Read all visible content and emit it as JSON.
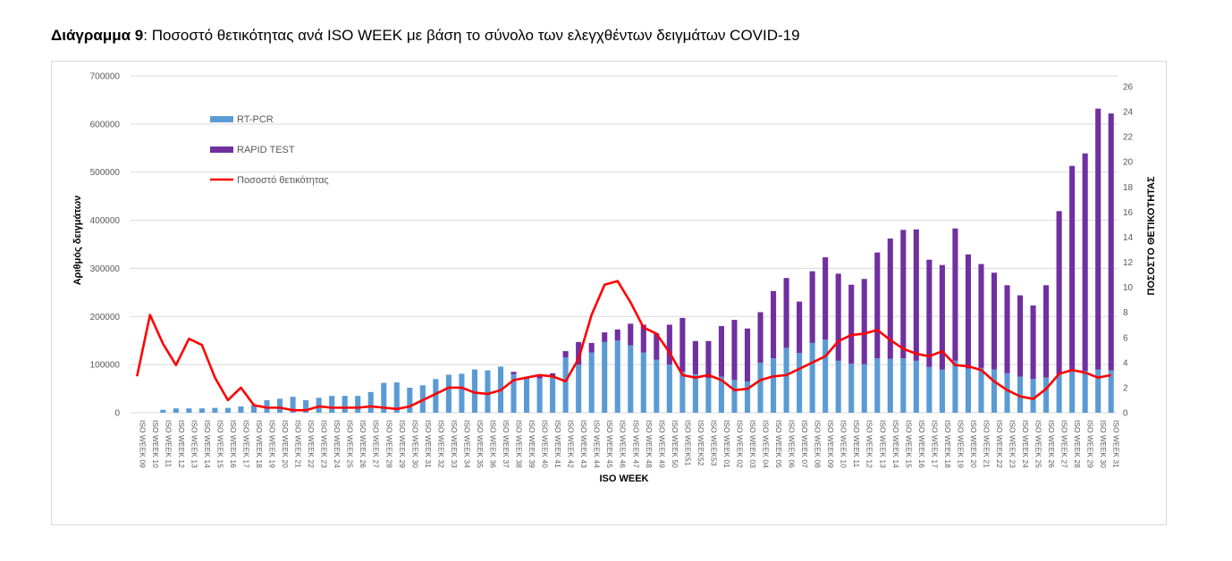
{
  "caption": {
    "label": "Διάγραμμα 9",
    "text": ": Ποσοστό θετικότητας ανά ISO WEEK με βάση το σύνολο των ελεγχθέντων δειγμάτων COVID-19"
  },
  "chart_data": {
    "type": "bar",
    "stacked": true,
    "title": "Διάγραμμα 9: Ποσοστό θετικότητας ανά ISO WEEK με βάση το σύνολο των ελεγχθέντων δειγμάτων COVID-19",
    "xlabel": "ISO WEEK",
    "ylabel": "Αριθμός δειγμάτων",
    "y2label": "ΠΟΣΟΣΤΟ ΘΕΤΙΚΟΤΗΤΑΣ",
    "ylim": [
      0,
      700000
    ],
    "y2lim": [
      0,
      26
    ],
    "yticks": [
      "0",
      "100000",
      "200000",
      "300000",
      "400000",
      "500000",
      "600000",
      "700000"
    ],
    "y2ticks": [
      "0",
      "2",
      "4",
      "6",
      "8",
      "10",
      "12",
      "14",
      "16",
      "18",
      "20",
      "22",
      "24",
      "26"
    ],
    "grid": true,
    "legend_position": "top-left",
    "categories": [
      "ISO WEEK 09",
      "ISO WEEK 10",
      "ISO WEEK 11",
      "ISO WEEK 12",
      "ISO WEEK 13",
      "ISO WEEK 14",
      "ISO WEEK 15",
      "ISO WEEK 16",
      "ISO WEEK 17",
      "ISO WEEK 18",
      "ISO WEEK 19",
      "ISO WEEK 20",
      "ISO WEEK 21",
      "ISO WEEK 22",
      "ISO WEEK 23",
      "ISO WEEK 24",
      "ISO WEEK 25",
      "ISO WEEK 26",
      "ISO WEEK 27",
      "ISO WEEK 28",
      "ISO WEEK 29",
      "ISO WEEK 30",
      "ISO WEEK 31",
      "ISO WEEK 32",
      "ISO WEEK 33",
      "ISO WEEK 34",
      "ISO WEEK 35",
      "ISO WEEK 36",
      "ISO WEEK 37",
      "ISO WEEK 38",
      "ISO WEEK 39",
      "ISO WEEK 40",
      "ISO WEEK 41",
      "ISO WEEK 42",
      "ISO WEEK 43",
      "ISO WEEK 44",
      "ISO WEEK 45",
      "ISO WEEK 46",
      "ISO WEEK 47",
      "ISO WEEK 48",
      "ISO WEEK 49",
      "ISO WEEK 50",
      "ISO WEEK51",
      "ISO WEEK52",
      "ISO WEEK53",
      "ISO WEEK 01",
      "ISO WEEK 02",
      "ISO WEEK 03",
      "ISO WEEK 04",
      "ISO WEEK 05",
      "ISO WEEK 06",
      "ISO WEEK 07",
      "ISO WEEK 08",
      "ISO WEEK 09",
      "ISO WEEK 10",
      "ISO WEEK 11",
      "ISO WEEK 12",
      "ISO WEEK 13",
      "ISO WEEK 14",
      "ISO WEEK 15",
      "ISO WEEK 16",
      "ISO WEEK 17",
      "ISO WEEK 18",
      "ISO WEEK 19",
      "ISO WEEK 20",
      "ISO WEEK 21",
      "ISO WEEK 22",
      "ISO WEEK 23",
      "ISO WEEK 24",
      "ISO WEEK 25",
      "ISO WEEK 26",
      "ISO WEEK 27",
      "ISO WEEK 28",
      "ISO WEEK 29",
      "ISO WEEK 30",
      "ISO WEEK 31"
    ],
    "series": [
      {
        "name": "RT-PCR",
        "kind": "bar",
        "color": "#5b9bd5",
        "values": [
          0,
          0,
          6000,
          9000,
          9000,
          9000,
          10000,
          10000,
          13000,
          16000,
          26000,
          29000,
          33000,
          26000,
          31000,
          35000,
          35000,
          35000,
          43000,
          62000,
          63000,
          52000,
          57000,
          70000,
          79000,
          81000,
          90000,
          88000,
          96000,
          80000,
          75000,
          71000,
          75000,
          115000,
          100000,
          125000,
          147000,
          150000,
          140000,
          125000,
          110000,
          100000,
          85000,
          80000,
          72000,
          75000,
          68000,
          65000,
          104000,
          113000,
          135000,
          124000,
          145000,
          152000,
          108000,
          102000,
          101000,
          113000,
          112000,
          113000,
          108000,
          95000,
          90000,
          108000,
          92000,
          93000,
          90000,
          82000,
          75000,
          70000,
          73000,
          80000,
          85000,
          87000,
          90000,
          88000
        ]
      },
      {
        "name": "RAPID TEST",
        "kind": "bar",
        "color": "#7030a0",
        "values": [
          0,
          0,
          0,
          0,
          0,
          0,
          0,
          0,
          0,
          0,
          0,
          0,
          0,
          0,
          0,
          0,
          0,
          0,
          0,
          0,
          0,
          0,
          0,
          0,
          0,
          0,
          0,
          0,
          0,
          5000,
          0,
          6000,
          7000,
          13000,
          47000,
          20000,
          20000,
          23000,
          45000,
          58000,
          55000,
          83000,
          112000,
          69000,
          77000,
          105000,
          125000,
          110000,
          105000,
          140000,
          145000,
          107000,
          149000,
          171000,
          181000,
          164000,
          177000,
          220000,
          250000,
          267000,
          273000,
          223000,
          217000,
          275000,
          237000,
          216000,
          201000,
          183000,
          169000,
          153000,
          192000,
          339000,
          428000,
          452000,
          542000,
          534000
        ]
      },
      {
        "name": "Ποσοστό θετικότητας",
        "kind": "line",
        "axis": "right",
        "color": "#ff0000",
        "values": [
          2.9,
          7.8,
          5.5,
          3.8,
          5.9,
          5.4,
          2.8,
          1.0,
          2.0,
          0.6,
          0.4,
          0.4,
          0.2,
          0.2,
          0.5,
          0.4,
          0.4,
          0.4,
          0.5,
          0.4,
          0.3,
          0.5,
          1.0,
          1.5,
          2.0,
          2.0,
          1.6,
          1.5,
          1.8,
          2.6,
          2.8,
          3.0,
          2.9,
          2.5,
          4.3,
          7.8,
          10.2,
          10.5,
          8.8,
          6.8,
          6.3,
          4.8,
          3.0,
          2.8,
          3.0,
          2.6,
          1.8,
          1.9,
          2.6,
          2.9,
          3.0,
          3.5,
          4.0,
          4.5,
          5.7,
          6.2,
          6.3,
          6.6,
          5.8,
          5.1,
          4.7,
          4.5,
          4.9,
          3.8,
          3.7,
          3.4,
          2.5,
          1.8,
          1.3,
          1.1,
          1.9,
          3.1,
          3.4,
          3.2,
          2.8,
          3.0
        ]
      }
    ]
  }
}
